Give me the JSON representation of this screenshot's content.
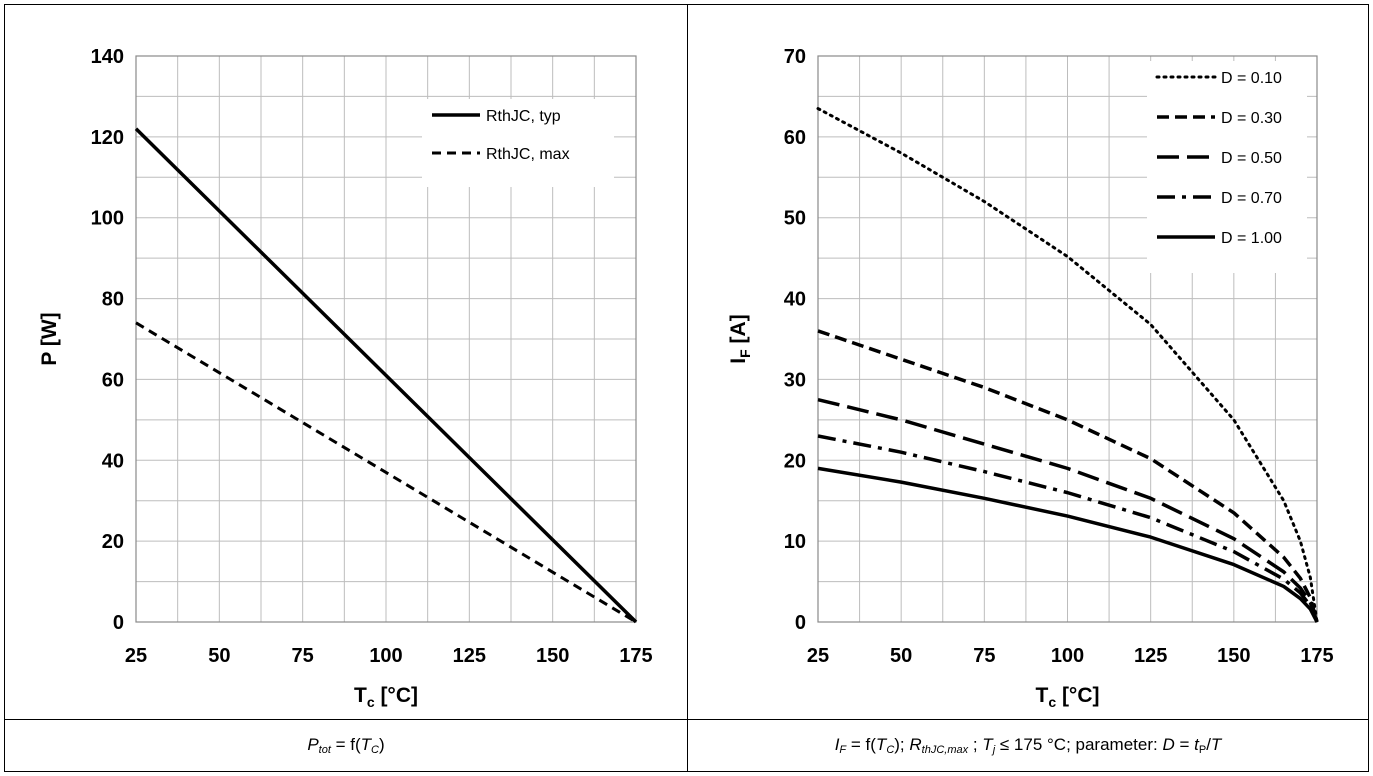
{
  "chart_data": [
    {
      "type": "line",
      "title": "",
      "xlabel": "T",
      "xlabel_sub": "c",
      "xlabel_unit": " [°C]",
      "ylabel": "P [W]",
      "xlim": [
        25,
        175
      ],
      "ylim": [
        0,
        140
      ],
      "x_ticks": [
        25,
        50,
        75,
        100,
        125,
        150,
        175
      ],
      "y_ticks": [
        0,
        20,
        40,
        60,
        80,
        100,
        120,
        140
      ],
      "grid": true,
      "legend_position": "top-right",
      "series": [
        {
          "name": "RthJC, typ",
          "style": "solid",
          "x": [
            25,
            175
          ],
          "y": [
            122,
            0
          ]
        },
        {
          "name": "RthJC, max",
          "style": "dashed",
          "x": [
            25,
            175
          ],
          "y": [
            74,
            0
          ]
        }
      ]
    },
    {
      "type": "line",
      "title": "",
      "xlabel": "T",
      "xlabel_sub": "c",
      "xlabel_unit": " [°C]",
      "ylabel": "I",
      "ylabel_sub": "F",
      "ylabel_unit": " [A]",
      "xlim": [
        25,
        175
      ],
      "ylim": [
        0,
        70
      ],
      "x_ticks": [
        25,
        50,
        75,
        100,
        125,
        150,
        175
      ],
      "y_ticks": [
        0,
        10,
        20,
        30,
        40,
        50,
        60,
        70
      ],
      "grid": true,
      "legend_position": "top-right",
      "series": [
        {
          "name": "D = 0.10",
          "style": "dotted",
          "x": [
            25,
            50,
            75,
            100,
            125,
            150,
            165,
            170,
            173,
            175
          ],
          "y": [
            63.5,
            58,
            52,
            45.2,
            36.8,
            25,
            15,
            10,
            5.5,
            0
          ]
        },
        {
          "name": "D = 0.30",
          "style": "dash-short",
          "x": [
            25,
            50,
            75,
            100,
            125,
            150,
            165,
            170,
            173,
            175
          ],
          "y": [
            36,
            32.5,
            29,
            25,
            20.2,
            13.5,
            8,
            5.4,
            3,
            0
          ]
        },
        {
          "name": "D = 0.50",
          "style": "dash-long",
          "x": [
            25,
            50,
            75,
            100,
            125,
            150,
            165,
            170,
            173,
            175
          ],
          "y": [
            27.5,
            25,
            22,
            19,
            15.3,
            10.3,
            6.2,
            4.2,
            2.4,
            0
          ]
        },
        {
          "name": "D = 0.70",
          "style": "dash-dot",
          "x": [
            25,
            50,
            75,
            100,
            125,
            150,
            165,
            170,
            173,
            175
          ],
          "y": [
            23,
            21,
            18.6,
            16,
            12.9,
            8.7,
            5.3,
            3.6,
            2,
            0
          ]
        },
        {
          "name": "D = 1.00",
          "style": "solid",
          "x": [
            25,
            50,
            75,
            100,
            125,
            150,
            165,
            170,
            173,
            175
          ],
          "y": [
            19,
            17.3,
            15.3,
            13.1,
            10.5,
            7.1,
            4.4,
            2.9,
            1.6,
            0
          ]
        }
      ]
    }
  ],
  "captions": {
    "left": {
      "P": "P",
      "tot": "tot",
      "eq": " = f(",
      "T": "T",
      "C": "C",
      "close": ")"
    },
    "right": {
      "I": "I",
      "F": "F",
      "eq": " = f(",
      "T": "T",
      "C": "C",
      "close": "); ",
      "R": "R",
      "rsub": "thJC,max",
      "sep": " ; ",
      "Tj": "T",
      "j": "j",
      "cond": " ≤ 175 °C; parameter: ",
      "D": "D",
      "eq2": " = ",
      "t": "t",
      "P": "P",
      "slash": "/",
      "T2": "T"
    }
  }
}
